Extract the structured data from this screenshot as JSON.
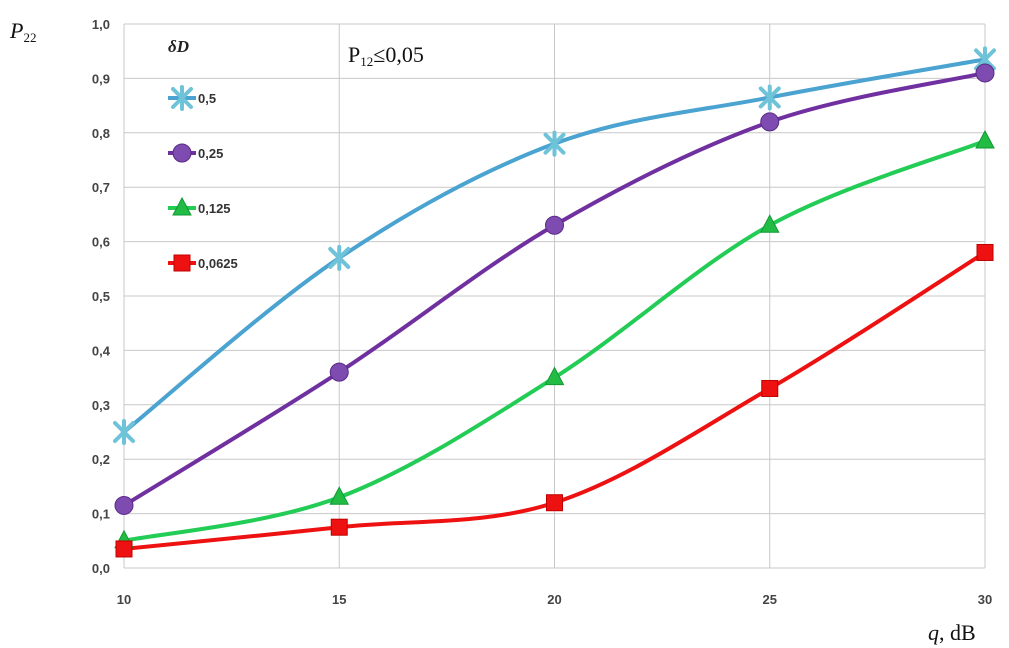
{
  "chart_data": {
    "type": "line",
    "title": "",
    "ylabel_main": "P",
    "ylabel_sub": "22",
    "xlabel_main": "q",
    "xlabel_unit": ", dB",
    "annotation_main": "P",
    "annotation_sub": "12",
    "annotation_rest": "≤0,05",
    "legend_title": "δD",
    "legend_placement": "top-left",
    "grid": true,
    "x": [
      10,
      15,
      20,
      25,
      30
    ],
    "xticks": [
      "10",
      "15",
      "20",
      "25",
      "30"
    ],
    "xlim": [
      10,
      30
    ],
    "ylim": [
      0,
      1
    ],
    "yticks": [
      "0,0",
      "0,1",
      "0,2",
      "0,3",
      "0,4",
      "0,5",
      "0,6",
      "0,7",
      "0,8",
      "0,9",
      "1,0"
    ],
    "series": [
      {
        "name": "0,5",
        "color": "#4aa3d0",
        "marker": "asterisk",
        "marker_color": "#6fc3d8",
        "values": [
          0.25,
          0.57,
          0.78,
          0.865,
          0.935
        ]
      },
      {
        "name": "0,25",
        "color": "#7030a0",
        "marker": "circle",
        "marker_color": "#7e4bb0",
        "values": [
          0.115,
          0.36,
          0.63,
          0.82,
          0.91
        ]
      },
      {
        "name": "0,125",
        "color": "#22cc55",
        "marker": "triangle",
        "marker_color": "#22bb44",
        "values": [
          0.05,
          0.13,
          0.35,
          0.63,
          0.785
        ]
      },
      {
        "name": "0,0625",
        "color": "#ee1111",
        "marker": "square",
        "marker_color": "#ee1111",
        "values": [
          0.035,
          0.075,
          0.12,
          0.33,
          0.58
        ]
      }
    ]
  }
}
